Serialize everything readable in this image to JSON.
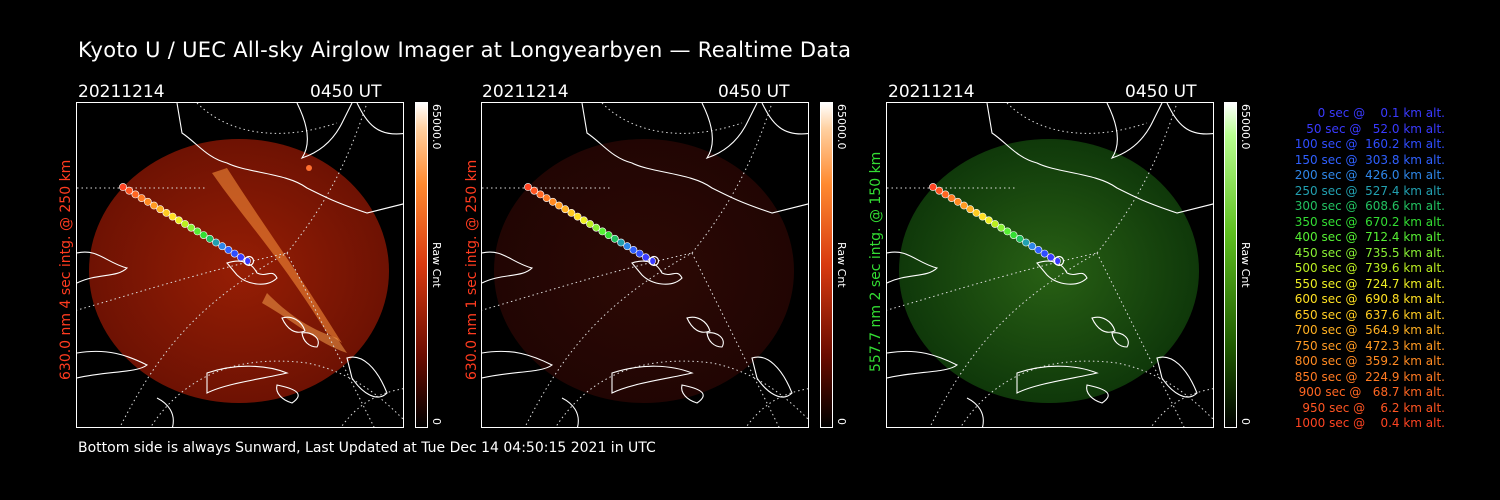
{
  "title": "Kyoto U / UEC All-sky Airglow Imager at Longyearbyen — Realtime Data",
  "footer": "Bottom side is always Sunward, Last Updated at Tue Dec 14 04:50:15 2021 in UTC",
  "panels": [
    {
      "date": "20211214",
      "time": "0450 UT",
      "side_label": "630.0 nm 4 sec intg. @ 250 km",
      "side_color": "#ff3b1f",
      "cbar_max": "65000.0",
      "cbar_min": "0",
      "cbar_unit": "Raw Cnt",
      "tint": "red",
      "brightness": 1.0
    },
    {
      "date": "20211214",
      "time": "0450 UT",
      "side_label": "630.0 nm 1 sec intg. @ 250 km",
      "side_color": "#ff3b1f",
      "cbar_max": "65000.0",
      "cbar_min": "0",
      "cbar_unit": "Raw Cnt",
      "tint": "red",
      "brightness": 0.3
    },
    {
      "date": "20211214",
      "time": "0450 UT",
      "side_label": "557.7 nm 2 sec intg. @ 150 km",
      "side_color": "#33dd33",
      "cbar_max": "65000.0",
      "cbar_min": "0",
      "cbar_unit": "Raw Cnt",
      "tint": "green",
      "brightness": 0.8
    }
  ],
  "legend": [
    {
      "text": "   0 sec @    0.1 km alt.",
      "color": "#3a3aff"
    },
    {
      "text": "  50 sec @   52.0 km alt.",
      "color": "#3a3aff"
    },
    {
      "text": " 100 sec @  160.2 km alt.",
      "color": "#2f4dff"
    },
    {
      "text": " 150 sec @  303.8 km alt.",
      "color": "#2f60ff"
    },
    {
      "text": " 200 sec @  426.0 km alt.",
      "color": "#2e86e8"
    },
    {
      "text": " 250 sec @  527.4 km alt.",
      "color": "#22a0b0"
    },
    {
      "text": " 300 sec @  608.6 km alt.",
      "color": "#22c060"
    },
    {
      "text": " 350 sec @  670.2 km alt.",
      "color": "#33dd33"
    },
    {
      "text": " 400 sec @  712.4 km alt.",
      "color": "#55ee33"
    },
    {
      "text": " 450 sec @  735.5 km alt.",
      "color": "#88ee33"
    },
    {
      "text": " 500 sec @  739.6 km alt.",
      "color": "#bbee22"
    },
    {
      "text": " 550 sec @  724.7 km alt.",
      "color": "#eeee22"
    },
    {
      "text": " 600 sec @  690.8 km alt.",
      "color": "#ffe022"
    },
    {
      "text": " 650 sec @  637.6 km alt.",
      "color": "#ffcc22"
    },
    {
      "text": " 700 sec @  564.9 km alt.",
      "color": "#ffb022"
    },
    {
      "text": " 750 sec @  472.3 km alt.",
      "color": "#ff9a22"
    },
    {
      "text": " 800 sec @  359.2 km alt.",
      "color": "#ff8a22"
    },
    {
      "text": " 850 sec @  224.9 km alt.",
      "color": "#ff7a22"
    },
    {
      "text": " 900 sec @   68.7 km alt.",
      "color": "#ff6622"
    },
    {
      "text": " 950 sec @    6.2 km alt.",
      "color": "#ff5522"
    },
    {
      "text": "1000 sec @    0.4 km alt.",
      "color": "#ff4422"
    }
  ]
}
